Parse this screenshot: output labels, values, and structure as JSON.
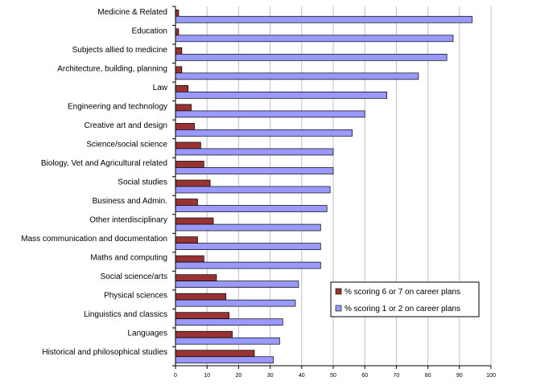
{
  "chart_data": {
    "type": "bar",
    "orientation": "horizontal",
    "title": "",
    "xlabel": "",
    "ylabel": "",
    "xlim": [
      0,
      100
    ],
    "xticks": [
      0,
      10,
      20,
      30,
      40,
      50,
      60,
      70,
      80,
      90,
      100
    ],
    "grid": "vertical gridlines",
    "legend_position": "right",
    "categories": [
      "Medicine & Related",
      "Education",
      "Subjects allied to medicine",
      "Architecture, building, planning",
      "Law",
      "Engineering and technology",
      "Creative art and design",
      "Science/social science",
      "Biology, Vet and Agricultural related",
      "Social studies",
      "Business and Admin.",
      "Other interdisciplinary",
      "Mass communication and documentation",
      "Maths and computing",
      "Social science/arts",
      "Physical sciences",
      "Linguistics and classics",
      "Languages",
      "Historical and philosophical studies"
    ],
    "series": [
      {
        "name": "% scoring 6 or 7 on career plans",
        "color": "#993333",
        "values": [
          1,
          1,
          2,
          2,
          4,
          5,
          6,
          8,
          9,
          11,
          7,
          12,
          7,
          9,
          13,
          16,
          17,
          18,
          25
        ]
      },
      {
        "name": "% scoring 1 or 2 on career plans",
        "color": "#9999ff",
        "values": [
          94,
          88,
          86,
          77,
          67,
          60,
          56,
          50,
          50,
          49,
          48,
          46,
          46,
          46,
          39,
          38,
          34,
          33,
          31
        ]
      }
    ]
  }
}
